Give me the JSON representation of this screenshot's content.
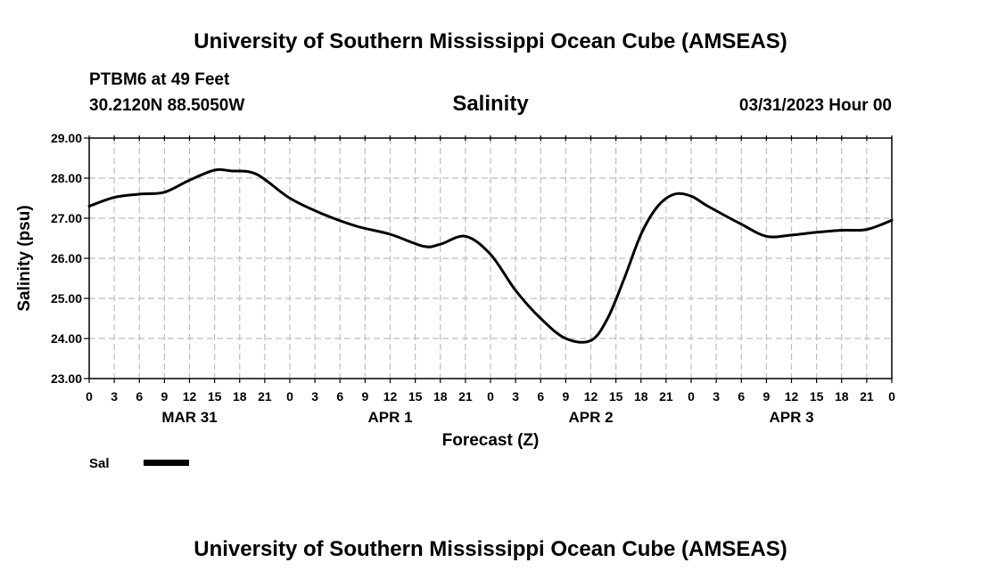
{
  "header": {
    "title": "University of Southern Mississippi Ocean Cube (AMSEAS)",
    "station": "PTBM6 at 49 Feet",
    "coords": "30.2120N  88.5050W",
    "datetime": "03/31/2023 Hour 00",
    "footer_title": "University of Southern Mississippi Ocean Cube (AMSEAS)"
  },
  "legend": {
    "label": "Sal",
    "color": "#000000"
  },
  "chart_data": {
    "type": "line",
    "title": "Salinity",
    "xlabel": "Forecast (Z)",
    "ylabel": "Salinity (psu)",
    "ylim": [
      23,
      29
    ],
    "xlim": [
      0,
      96
    ],
    "grid": true,
    "y_ticks": [
      "23.00",
      "24.00",
      "25.00",
      "26.00",
      "27.00",
      "28.00",
      "29.00"
    ],
    "x_tick_labels": [
      "0",
      "3",
      "6",
      "9",
      "12",
      "15",
      "18",
      "21",
      "0",
      "3",
      "6",
      "9",
      "12",
      "15",
      "18",
      "21",
      "0",
      "3",
      "6",
      "9",
      "12",
      "15",
      "18",
      "21",
      "0",
      "3",
      "6",
      "9",
      "12",
      "15",
      "18",
      "21",
      "0"
    ],
    "day_labels": [
      {
        "label": "MAR 31",
        "hour": 12
      },
      {
        "label": "APR 1",
        "hour": 36
      },
      {
        "label": "APR 2",
        "hour": 60
      },
      {
        "label": "APR 3",
        "hour": 84
      }
    ],
    "series": [
      {
        "name": "Sal",
        "x": [
          0,
          3,
          6,
          9,
          12,
          15,
          17,
          20,
          24,
          28,
          32,
          36,
          40,
          42,
          45,
          48,
          51,
          54,
          57,
          60,
          62,
          64,
          66,
          68,
          70,
          72,
          74,
          78,
          81,
          84,
          87,
          90,
          93,
          96
        ],
        "values": [
          27.3,
          27.52,
          27.6,
          27.65,
          27.95,
          28.2,
          28.18,
          28.1,
          27.5,
          27.1,
          26.8,
          26.6,
          26.3,
          26.35,
          26.55,
          26.1,
          25.2,
          24.5,
          24.0,
          23.95,
          24.5,
          25.5,
          26.6,
          27.3,
          27.6,
          27.55,
          27.3,
          26.85,
          26.55,
          26.58,
          26.65,
          26.7,
          26.72,
          26.95
        ]
      }
    ]
  }
}
